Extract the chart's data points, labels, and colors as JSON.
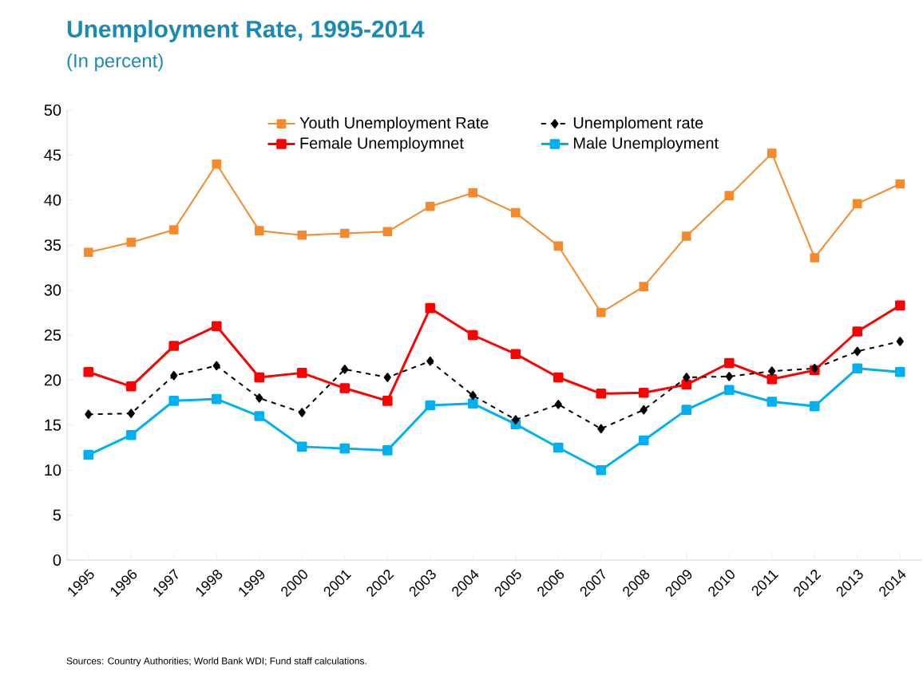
{
  "chart_data": {
    "type": "line",
    "title": "Unemployment Rate, 1995-2014",
    "subtitle": "(In percent)",
    "categories": [
      "1995",
      "1996",
      "1997",
      "1998",
      "1999",
      "2000",
      "2001",
      "2002",
      "2003",
      "2004",
      "2005",
      "2006",
      "2007",
      "2008",
      "2009",
      "2010",
      "2011",
      "2012",
      "2013",
      "2014"
    ],
    "series": [
      {
        "name": "Youth Unemployment Rate",
        "color": "#f58a2c",
        "marker": "square",
        "line_style": "solid",
        "values": [
          34.2,
          35.3,
          36.7,
          44.0,
          36.6,
          36.1,
          36.3,
          36.5,
          39.3,
          40.8,
          38.6,
          34.9,
          27.5,
          30.4,
          36.0,
          40.5,
          45.2,
          33.6,
          39.6,
          41.8
        ]
      },
      {
        "name": "Unemploment rate",
        "color": "#000000",
        "marker": "diamond",
        "line_style": "dashed",
        "values": [
          16.2,
          16.3,
          20.5,
          21.6,
          18.0,
          16.4,
          21.2,
          20.3,
          22.1,
          18.3,
          15.6,
          17.3,
          14.6,
          16.7,
          20.3,
          20.4,
          21.0,
          21.3,
          23.2,
          24.3
        ]
      },
      {
        "name": "Female Unemploymnet",
        "color": "#ff0000",
        "marker": "square",
        "line_style": "solid",
        "values": [
          20.9,
          19.3,
          23.8,
          26.0,
          20.3,
          20.8,
          19.1,
          17.7,
          28.0,
          25.0,
          22.9,
          20.3,
          18.5,
          18.6,
          19.5,
          21.9,
          20.1,
          21.1,
          25.4,
          28.3
        ]
      },
      {
        "name": "Male Unemployment",
        "color": "#00b0f0",
        "marker": "square",
        "line_style": "solid",
        "values": [
          11.7,
          13.9,
          17.7,
          17.9,
          16.0,
          12.6,
          12.4,
          12.2,
          17.2,
          17.4,
          15.1,
          12.5,
          10.0,
          13.3,
          16.7,
          18.9,
          17.6,
          17.1,
          21.3,
          20.9
        ]
      }
    ],
    "ylim": [
      0,
      50
    ],
    "yticks": [
      0,
      5,
      10,
      15,
      20,
      25,
      30,
      35,
      40,
      45,
      50
    ],
    "grid": false,
    "legend": "top",
    "annotations": [
      "Sources: Country Authorities;  World Bank WDI; Fund staff calculations."
    ]
  }
}
